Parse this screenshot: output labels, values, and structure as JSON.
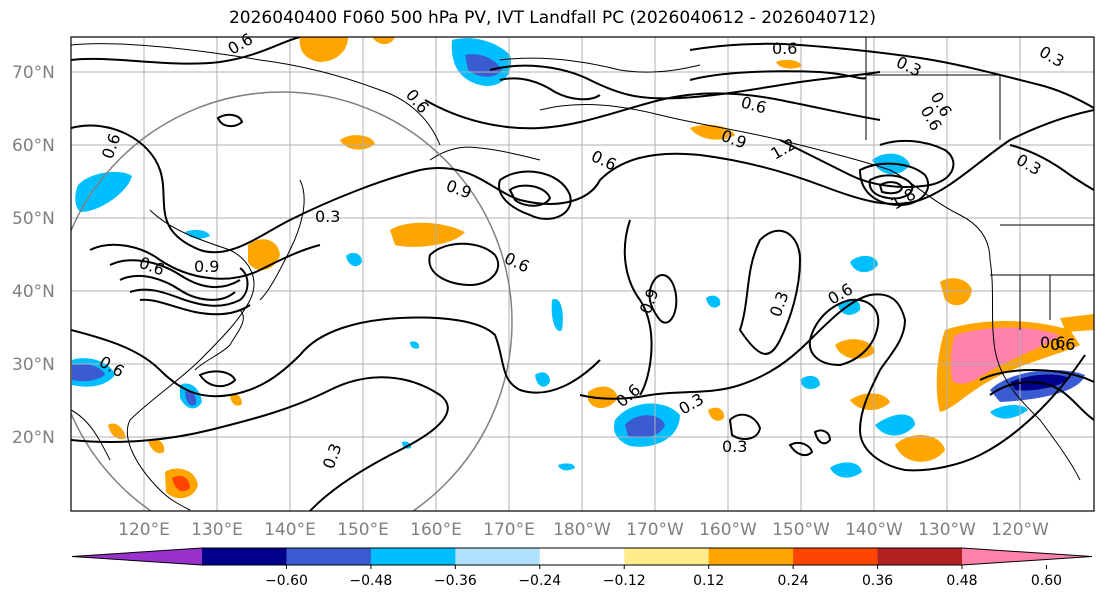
{
  "title": "2026040400 F060 500 hPa PV, IVT Landfall PC (2026040612 - 2026040712)",
  "lat_labels": [
    "70°N",
    "60°N",
    "50°N",
    "40°N",
    "30°N",
    "20°N"
  ],
  "lon_labels": [
    "120°E",
    "130°E",
    "140°E",
    "150°E",
    "160°E",
    "170°E",
    "180°W",
    "170°W",
    "160°W",
    "150°W",
    "140°W",
    "130°W",
    "120°W"
  ],
  "colorbar": {
    "ticks": [
      "−0.60",
      "−0.48",
      "−0.36",
      "−0.24",
      "−0.12",
      "0.12",
      "0.24",
      "0.36",
      "0.48",
      "0.60"
    ],
    "colors": [
      "#9932cc",
      "#00008b",
      "#3a5bd2",
      "#00bfff",
      "#b0e2ff",
      "#ffffff",
      "#ffec8b",
      "#ffa500",
      "#ff4500",
      "#b22222",
      "#ff82ab"
    ]
  },
  "contour_labels": [
    "0.6",
    "0.6",
    "0.3",
    "0.6",
    "0.6",
    "0.9",
    "0.6",
    "0.9",
    "0.3",
    "0.6",
    "0.6",
    "0.9",
    "0.6",
    "0.3",
    "0.6",
    "0.9",
    "0.3",
    "0.6",
    "0.6",
    "0.3",
    "0.3",
    "0.6",
    "0.3",
    "1.2",
    "1.8",
    "0.6",
    "0.6",
    "0.3",
    "0.6"
  ]
}
